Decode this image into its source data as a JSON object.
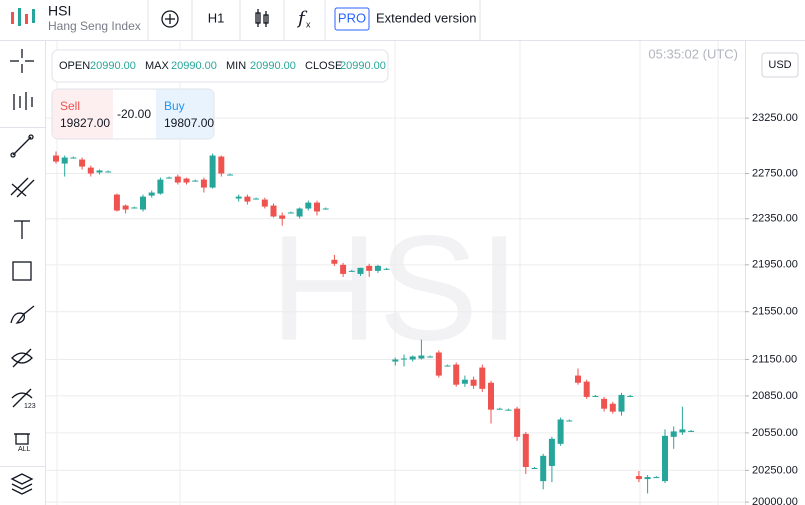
{
  "header": {
    "symbol": "HSI",
    "name": "Hang Seng Index",
    "timeframe": "H1",
    "pro": "PRO",
    "extended": "Extended version"
  },
  "ohlc": {
    "open_label": "OPEN",
    "open": "20990.00",
    "max_label": "MAX",
    "max": "20990.00",
    "min_label": "MIN",
    "min": "20990.00",
    "close_label": "CLOSE",
    "close": "20990.00"
  },
  "trade": {
    "sell_label": "Sell",
    "sell": "19827.00",
    "spread": "-20.00",
    "buy_label": "Buy",
    "buy": "19807.00"
  },
  "clock": "05:35:02 (UTC)",
  "currency": "USD",
  "watermark": "HSI",
  "toolbar": {
    "indicator_label": "123",
    "remove_label": "ALL"
  },
  "chart_data": {
    "type": "candlestick",
    "open": [
      22911,
      22839,
      22893,
      22875,
      22803,
      22759,
      22768,
      22563,
      22466,
      22449,
      22431,
      22554,
      22572,
      22714,
      22723,
      22705,
      22687,
      22696,
      22625,
      22902,
      22741,
      22528,
      22545,
      22528,
      22519,
      22466,
      22379,
      22405,
      22370,
      22440,
      22492,
      22440,
      21993,
      21950,
      21898,
      21872,
      21941,
      21898,
      21916,
      21133,
      21158,
      21150,
      21158,
      21175,
      21208,
      21100,
      21108,
      20950,
      20983,
      21083,
      20958,
      20746,
      20738,
      20746,
      20542,
      20269,
      20165,
      20285,
      20462,
      20650,
      21017,
      20967,
      20850,
      20826,
      20786,
      20722,
      20850,
      20205,
      20181,
      20197,
      20165,
      20518,
      20554,
      20566
    ],
    "high": [
      22947,
      22911,
      22902,
      22893,
      22821,
      22786,
      22777,
      22572,
      22475,
      22457,
      22563,
      22598,
      22714,
      22723,
      22741,
      22714,
      22696,
      22714,
      22929,
      22911,
      22750,
      22563,
      22563,
      22536,
      22536,
      22484,
      22405,
      22414,
      22449,
      22510,
      22510,
      22449,
      22036,
      21967,
      21907,
      21924,
      21959,
      21950,
      21924,
      21166,
      21191,
      21183,
      21316,
      21183,
      21225,
      21108,
      21125,
      21017,
      21008,
      21108,
      20975,
      20754,
      20746,
      20762,
      20558,
      20277,
      20382,
      20518,
      20674,
      20658,
      21075,
      20983,
      20858,
      20842,
      20802,
      20875,
      20858,
      20245,
      20213,
      20205,
      20578,
      20602,
      20762,
      20574
    ],
    "low": [
      22839,
      22723,
      22884,
      22786,
      22723,
      22741,
      22759,
      22414,
      22396,
      22440,
      22414,
      22536,
      22563,
      22705,
      22652,
      22652,
      22678,
      22581,
      22616,
      22723,
      22732,
      22501,
      22475,
      22519,
      22440,
      22361,
      22289,
      22396,
      22353,
      22422,
      22379,
      22431,
      21941,
      21846,
      21890,
      21855,
      21846,
      21881,
      21907,
      21100,
      21092,
      21133,
      21150,
      21166,
      21000,
      21092,
      20925,
      20925,
      20908,
      20883,
      20626,
      20738,
      20730,
      20486,
      20221,
      20261,
      20100,
      20157,
      20446,
      20642,
      20942,
      20826,
      20842,
      20722,
      20706,
      20690,
      20842,
      20157,
      20068,
      20189,
      20149,
      20422,
      20534,
      20558
    ],
    "close": [
      22857,
      22893,
      22893,
      22812,
      22750,
      22777,
      22768,
      22422,
      22431,
      22449,
      22545,
      22581,
      22696,
      22714,
      22670,
      22670,
      22687,
      22625,
      22911,
      22750,
      22741,
      22545,
      22501,
      22528,
      22457,
      22370,
      22350,
      22405,
      22440,
      22492,
      22414,
      22440,
      21959,
      21872,
      21898,
      21924,
      21898,
      21941,
      21916,
      21150,
      21158,
      21175,
      21183,
      21175,
      21017,
      21100,
      20942,
      20983,
      20933,
      20908,
      20738,
      20746,
      20738,
      20518,
      20277,
      20269,
      20366,
      20502,
      20658,
      20650,
      20958,
      20842,
      20850,
      20746,
      20722,
      20858,
      20850,
      20181,
      20197,
      20197,
      20526,
      20562,
      20578,
      20566
    ],
    "up_color": "#26a69a",
    "down_color": "#ef5350",
    "log_scale": true,
    "grid": true,
    "ylim": [
      19977,
      23973
    ],
    "yticks": [
      {
        "value": 23250,
        "label": "23250.00"
      },
      {
        "value": 22750,
        "label": "22750.00"
      },
      {
        "value": 22350,
        "label": "22350.00"
      },
      {
        "value": 21950,
        "label": "21950.00"
      },
      {
        "value": 21550,
        "label": "21550.00"
      },
      {
        "value": 21150,
        "label": "21150.00"
      },
      {
        "value": 20850,
        "label": "20850.00"
      },
      {
        "value": 20550,
        "label": "20550.00"
      },
      {
        "value": 20250,
        "label": "20250.00"
      },
      {
        "value": 20000,
        "label": "20000.00"
      }
    ]
  }
}
